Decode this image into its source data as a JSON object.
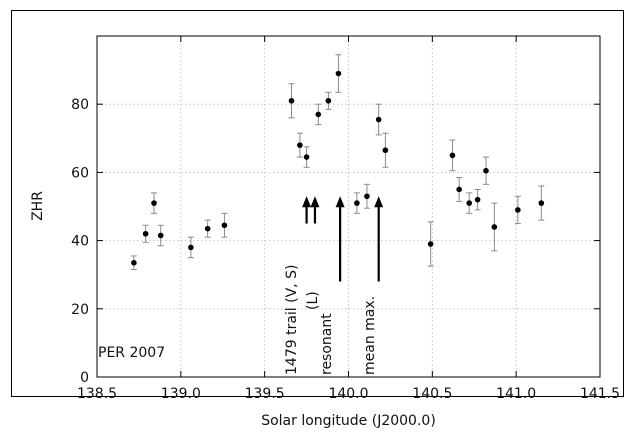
{
  "chart_data": {
    "type": "scatter",
    "title": "",
    "xlabel": "Solar longitude (J2000.0)",
    "ylabel": "ZHR",
    "xlim": [
      138.5,
      141.5
    ],
    "ylim": [
      0,
      100
    ],
    "xticks": [
      "138.5",
      "139.0",
      "139.5",
      "140.0",
      "140.5",
      "141.0",
      "141.5"
    ],
    "yticks": [
      "0",
      "20",
      "40",
      "60",
      "80"
    ],
    "grid": true,
    "dataset_label": "PER 2007",
    "series": [
      {
        "points": [
          {
            "x": 138.72,
            "y": 33.5,
            "err": 2.0
          },
          {
            "x": 138.79,
            "y": 42.0,
            "err": 2.5
          },
          {
            "x": 138.84,
            "y": 51.0,
            "err": 3.0
          },
          {
            "x": 138.88,
            "y": 41.5,
            "err": 3.0
          },
          {
            "x": 139.06,
            "y": 38.0,
            "err": 3.0
          },
          {
            "x": 139.16,
            "y": 43.5,
            "err": 2.5
          },
          {
            "x": 139.26,
            "y": 44.5,
            "err": 3.5
          },
          {
            "x": 139.66,
            "y": 81.0,
            "err": 5.0
          },
          {
            "x": 139.71,
            "y": 68.0,
            "err": 3.5
          },
          {
            "x": 139.75,
            "y": 64.5,
            "err": 3.0
          },
          {
            "x": 139.82,
            "y": 77.0,
            "err": 3.0
          },
          {
            "x": 139.88,
            "y": 81.0,
            "err": 2.5
          },
          {
            "x": 139.94,
            "y": 89.0,
            "err": 5.5
          },
          {
            "x": 140.05,
            "y": 51.0,
            "err": 3.0
          },
          {
            "x": 140.11,
            "y": 53.0,
            "err": 3.5
          },
          {
            "x": 140.18,
            "y": 75.5,
            "err": 4.5
          },
          {
            "x": 140.22,
            "y": 66.5,
            "err": 5.0
          },
          {
            "x": 140.49,
            "y": 39.0,
            "err": 6.5
          },
          {
            "x": 140.62,
            "y": 65.0,
            "err": 4.5
          },
          {
            "x": 140.66,
            "y": 55.0,
            "err": 3.5
          },
          {
            "x": 140.72,
            "y": 51.0,
            "err": 3.0
          },
          {
            "x": 140.77,
            "y": 52.0,
            "err": 3.0
          },
          {
            "x": 140.82,
            "y": 60.5,
            "err": 4.0
          },
          {
            "x": 140.87,
            "y": 44.0,
            "err": 7.0
          },
          {
            "x": 141.01,
            "y": 49.0,
            "err": 4.0
          },
          {
            "x": 141.15,
            "y": 51.0,
            "err": 5.0
          }
        ]
      }
    ],
    "annotations": [
      {
        "x": 139.75,
        "y_from": 45,
        "y_to": 53,
        "label": "1479 trail (V, S)"
      },
      {
        "x": 139.8,
        "y_from": 45,
        "y_to": 53,
        "label": "(L)"
      },
      {
        "x": 139.95,
        "y_from": 28,
        "y_to": 53,
        "label": "resonant"
      },
      {
        "x": 140.18,
        "y_from": 28,
        "y_to": 53,
        "label": "mean max."
      }
    ]
  }
}
